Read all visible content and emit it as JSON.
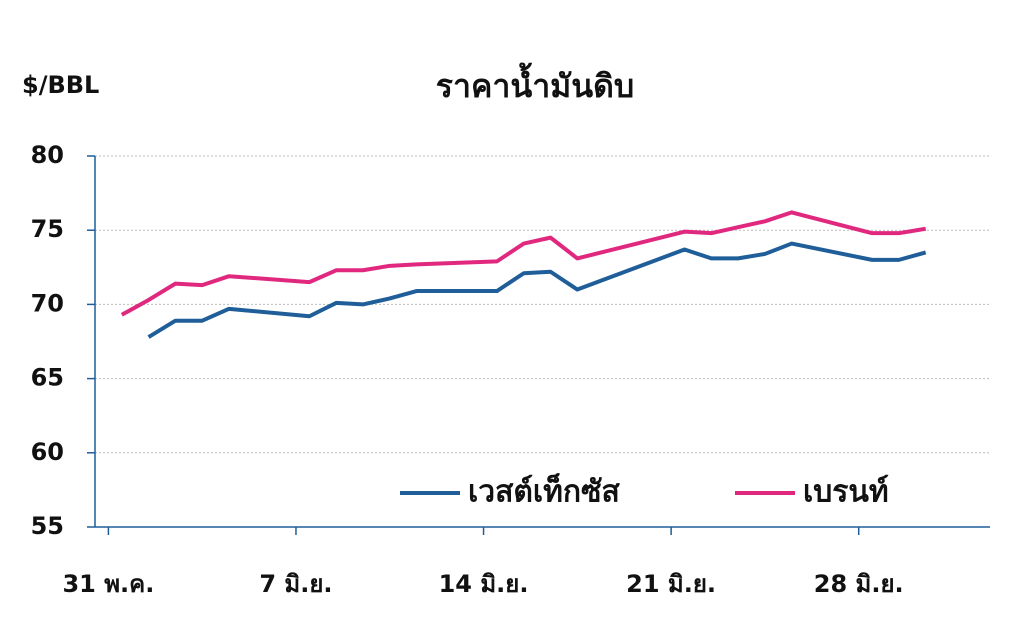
{
  "chart_data": {
    "type": "line",
    "title": "ราคาน้ำมันดิบ",
    "y_label": "$/BBL",
    "x": [
      0.5,
      1.5,
      2.5,
      3.5,
      4.5,
      7.5,
      8.5,
      9.5,
      10.5,
      11.5,
      14.5,
      15.5,
      16.5,
      17.5,
      21.5,
      22.5,
      23.5,
      24.5,
      25.5,
      28.5,
      29.5,
      30.5
    ],
    "series": [
      {
        "name": "เวสต์เท็กซัส",
        "color": "#1f5e99",
        "values": [
          null,
          67.8,
          68.9,
          68.9,
          69.7,
          69.2,
          70.1,
          70.0,
          70.4,
          70.9,
          70.9,
          72.1,
          72.2,
          71.0,
          73.7,
          73.1,
          73.1,
          73.4,
          74.1,
          73.0,
          73.0,
          73.5
        ]
      },
      {
        "name": "เบรนท์",
        "color": "#e0287f",
        "values": [
          69.3,
          70.3,
          71.4,
          71.3,
          71.9,
          71.5,
          72.3,
          72.3,
          72.6,
          72.7,
          72.9,
          74.1,
          74.5,
          73.1,
          74.9,
          74.8,
          75.2,
          75.6,
          76.2,
          74.8,
          74.8,
          75.1
        ]
      }
    ],
    "xlim": [
      -0.5,
      32.9
    ],
    "xticks": [
      {
        "value": 0,
        "label": "31 พ.ค."
      },
      {
        "value": 7,
        "label": "7 มิ.ย."
      },
      {
        "value": 14,
        "label": "14 มิ.ย."
      },
      {
        "value": 21,
        "label": "21 มิ.ย."
      },
      {
        "value": 28,
        "label": "28 มิ.ย."
      }
    ],
    "ylim": [
      55,
      80
    ],
    "yticks": [
      55,
      60,
      65,
      70,
      75,
      80
    ],
    "grid": true
  }
}
